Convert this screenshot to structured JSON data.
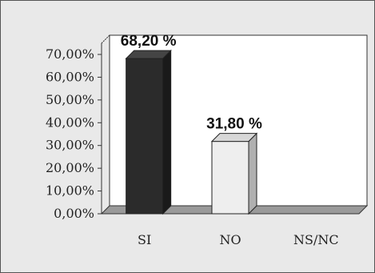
{
  "chart_data": {
    "type": "bar",
    "categories": [
      "SI",
      "NO",
      "NS/NC"
    ],
    "values": [
      68.2,
      31.8,
      0
    ],
    "data_labels": [
      "68,20 %",
      "31,80 %",
      ""
    ],
    "y_ticks": [
      "0,00%",
      "10,00%",
      "20,00%",
      "30,00%",
      "40,00%",
      "50,00%",
      "60,00%",
      "70,00%"
    ],
    "y_tick_values": [
      0,
      10,
      20,
      30,
      40,
      50,
      60,
      70
    ],
    "ylim": [
      0,
      70
    ],
    "grid": false,
    "legend": "none",
    "bar_colors": [
      "#2b2b2b",
      "#eeeeee",
      "#cfcfcf"
    ],
    "plot_background": "#ffffff",
    "chart_background": "#e9e9e9",
    "floor_color": "#9a9a9a"
  }
}
